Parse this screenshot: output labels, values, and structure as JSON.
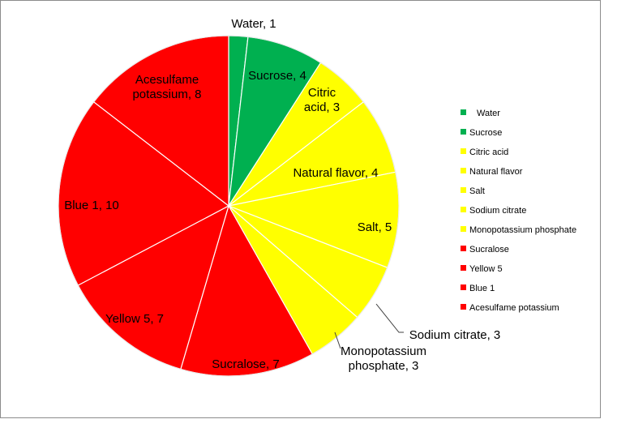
{
  "chart_data": {
    "type": "pie",
    "title": "",
    "categories": [
      "Water",
      "Sucrose",
      "Citric acid",
      "Natural flavor",
      "Salt",
      "Sodium citrate",
      "Monopotassium phosphate",
      "Sucralose",
      "Yellow 5",
      "Blue 1",
      "Acesulfame potassium"
    ],
    "values": [
      1,
      4,
      3,
      4,
      5,
      3,
      3,
      7,
      7,
      10,
      8
    ],
    "colors": [
      "#00b050",
      "#00b050",
      "#ffff00",
      "#ffff00",
      "#ffff00",
      "#ffff00",
      "#ffff00",
      "#ff0000",
      "#ff0000",
      "#ff0000",
      "#ff0000"
    ],
    "data_labels": [
      [
        "Water, 1"
      ],
      [
        "Sucrose, 4"
      ],
      [
        "Citric",
        "acid, 3"
      ],
      [
        "Natural flavor, 4"
      ],
      [
        "Salt, 5"
      ],
      [
        "Sodium citrate, 3"
      ],
      [
        "Monopotassium",
        "phosphate, 3"
      ],
      [
        "Sucralose, 7"
      ],
      [
        "Yellow 5, 7"
      ],
      [
        "Blue 1, 10"
      ],
      [
        "Acesulfame",
        "potassium, 8"
      ]
    ],
    "legend": [
      "Water",
      "Sucrose",
      "Citric acid",
      "Natural flavor",
      "Salt",
      "Sodium citrate",
      "Monopotassium phosphate",
      "Sucralose",
      "Yellow 5",
      "Blue 1",
      "Acesulfame potassium"
    ],
    "legend_position": "right"
  }
}
